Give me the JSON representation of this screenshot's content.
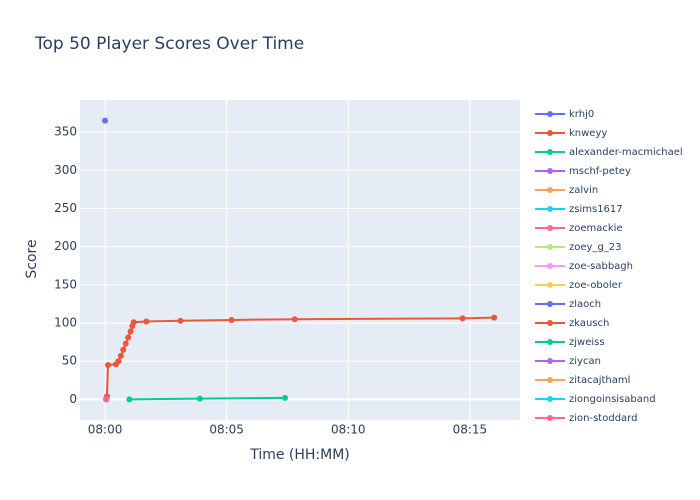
{
  "chart_data": {
    "type": "line",
    "title": "Top 50 Player Scores Over Time",
    "x_label": "Time (HH:MM)",
    "y_label": "Score",
    "xlim": [
      -1.03,
      17.06
    ],
    "ylim": [
      -27,
      392
    ],
    "xticks": [
      {
        "value": 0,
        "label": "08:00"
      },
      {
        "value": 5,
        "label": "08:05"
      },
      {
        "value": 10,
        "label": "08:10"
      },
      {
        "value": 15,
        "label": "08:15"
      }
    ],
    "yticks": [
      0,
      50,
      100,
      150,
      200,
      250,
      300,
      350
    ],
    "grid": true,
    "legend": "right",
    "series": [
      {
        "name": "krhj0",
        "color": "#636efa",
        "x": [
          0
        ],
        "values": [
          365
        ]
      },
      {
        "name": "knweyy",
        "color": "#EF553B",
        "x": [
          0.08,
          0.12,
          0.45,
          0.55,
          0.65,
          0.75,
          0.85,
          0.95,
          1.05,
          1.12,
          1.18,
          1.7,
          3.1,
          5.2,
          7.8,
          14.7,
          16.0
        ],
        "values": [
          4,
          45,
          46,
          50,
          57,
          65,
          73,
          81,
          89,
          96,
          101,
          102,
          103,
          104,
          105,
          106,
          107
        ]
      },
      {
        "name": "alexander-macmichael",
        "color": "#00cc96",
        "x": [
          1.0,
          3.9,
          7.4
        ],
        "values": [
          0,
          1,
          2
        ]
      },
      {
        "name": "mschf-petey",
        "color": "#ab63fa",
        "x": [
          0.05
        ],
        "values": [
          1
        ]
      },
      {
        "name": "zalvin",
        "color": "#FFA15A",
        "x": [
          0.05
        ],
        "values": [
          0
        ]
      },
      {
        "name": "zsims1617",
        "color": "#19d3f3",
        "x": [
          0.05
        ],
        "values": [
          0
        ]
      },
      {
        "name": "zoemackie",
        "color": "#FF6692",
        "x": [
          0.05
        ],
        "values": [
          0
        ]
      },
      {
        "name": "zoey_g_23",
        "color": "#B6E880",
        "x": [
          0.05
        ],
        "values": [
          0
        ]
      },
      {
        "name": "zoe-sabbagh",
        "color": "#FF97FF",
        "x": [
          0.05
        ],
        "values": [
          0
        ]
      },
      {
        "name": "zoe-oboler",
        "color": "#FECB52",
        "x": [
          0.05
        ],
        "values": [
          0
        ]
      },
      {
        "name": "zlaoch",
        "color": "#636efa",
        "x": [
          0.05
        ],
        "values": [
          0
        ]
      },
      {
        "name": "zkausch",
        "color": "#EF553B",
        "x": [
          0.05
        ],
        "values": [
          0
        ]
      },
      {
        "name": "zjweiss",
        "color": "#00cc96",
        "x": [
          0.05
        ],
        "values": [
          0
        ]
      },
      {
        "name": "ziycan",
        "color": "#ab63fa",
        "x": [
          0.05
        ],
        "values": [
          0
        ]
      },
      {
        "name": "zitacajthaml",
        "color": "#FFA15A",
        "x": [
          0.05
        ],
        "values": [
          0
        ]
      },
      {
        "name": "ziongoinsisaband",
        "color": "#19d3f3",
        "x": [
          0.05
        ],
        "values": [
          0
        ]
      },
      {
        "name": "zion-stoddard",
        "color": "#FF6692",
        "x": [
          0.05
        ],
        "values": [
          0
        ]
      }
    ]
  }
}
